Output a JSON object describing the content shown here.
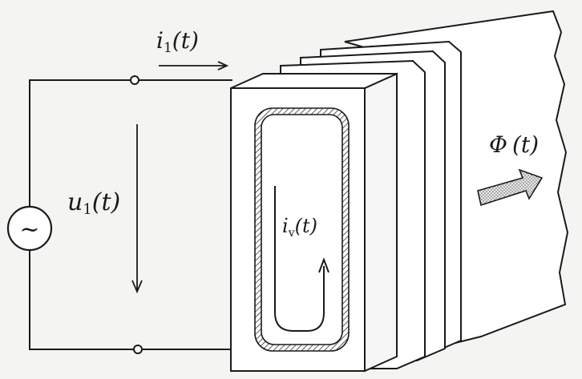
{
  "labels": {
    "i1": {
      "main": "i",
      "sub": "1",
      "arg": "(t)"
    },
    "u1": {
      "main": "u",
      "sub": "1",
      "arg": "(t)"
    },
    "iv": {
      "main": "i",
      "sub": "v",
      "arg": "(t)"
    },
    "phi": {
      "main": "Φ",
      "arg": "(t)"
    },
    "source_symbol": "~"
  },
  "colors": {
    "line": "#1a1a1a",
    "face": "#ffffff",
    "background": "#f4f4f2"
  }
}
